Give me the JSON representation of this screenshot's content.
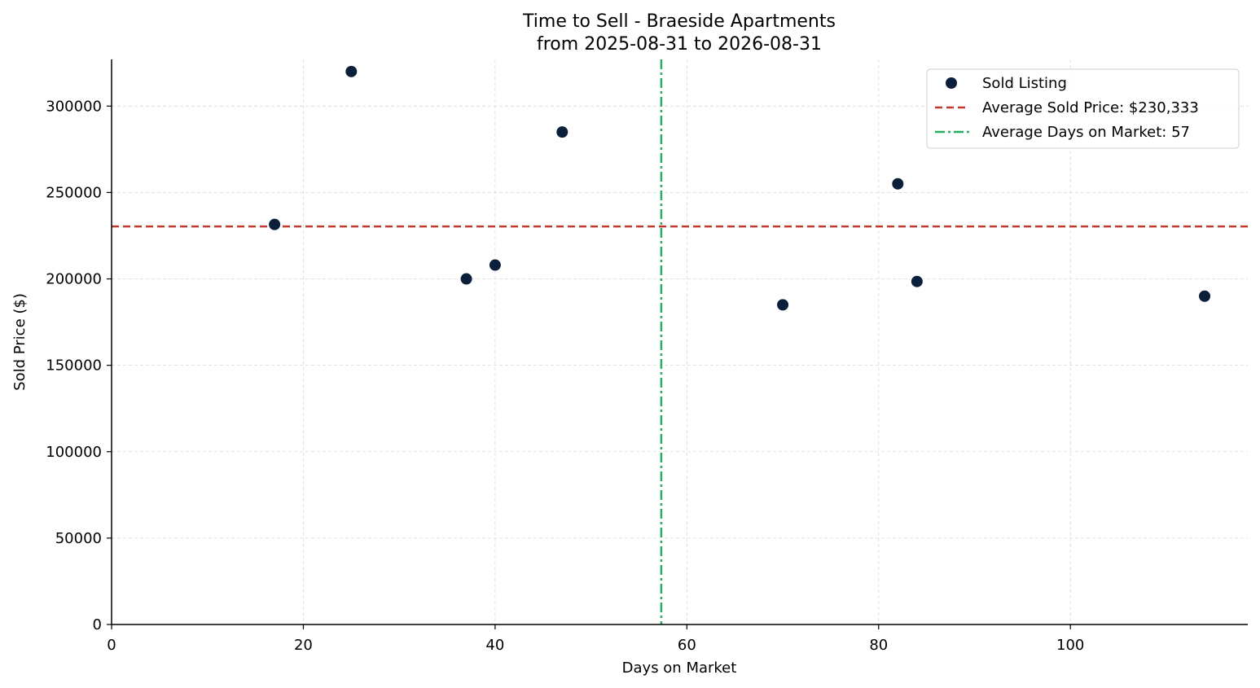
{
  "chart_data": {
    "type": "scatter",
    "title": "Time to Sell - Braeside Apartments",
    "subtitle": "from 2025-08-31 to 2026-08-31",
    "xlabel": "Days on Market",
    "ylabel": "Sold Price ($)",
    "xlim": [
      0,
      118.5
    ],
    "ylim": [
      0,
      327000
    ],
    "xticks": [
      0,
      20,
      40,
      60,
      80,
      100
    ],
    "yticks": [
      0,
      50000,
      100000,
      150000,
      200000,
      250000,
      300000
    ],
    "grid": true,
    "legend_position": "top-right",
    "colors": {
      "points": "#0b1f3a",
      "avg_price_line": "#c0392b",
      "avg_days_line": "#27ae60",
      "grid": "#d9d9d9",
      "axis": "#000000"
    },
    "series": [
      {
        "name": "Sold Listing",
        "points": [
          {
            "x": 17,
            "y": 231500
          },
          {
            "x": 25,
            "y": 320000
          },
          {
            "x": 37,
            "y": 200000
          },
          {
            "x": 40,
            "y": 208000
          },
          {
            "x": 47,
            "y": 285000
          },
          {
            "x": 70,
            "y": 185000
          },
          {
            "x": 82,
            "y": 255000
          },
          {
            "x": 84,
            "y": 198500
          },
          {
            "x": 114,
            "y": 190000
          }
        ]
      }
    ],
    "reference_lines": [
      {
        "orientation": "horizontal",
        "value": 230333,
        "name": "Average Sold Price: $230,333",
        "style": "dashed"
      },
      {
        "orientation": "vertical",
        "value": 57.33,
        "name": "Average Days on Market: 57",
        "style": "dashdot"
      }
    ]
  }
}
